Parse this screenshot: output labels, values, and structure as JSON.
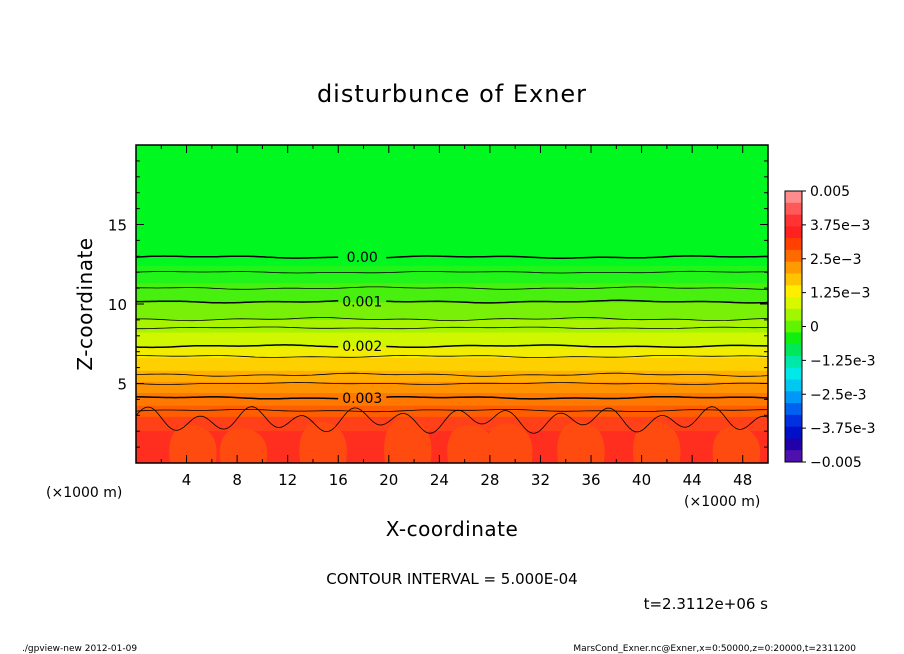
{
  "chart_data": {
    "type": "heatmap",
    "title": "disturbunce of Exner",
    "xlabel": "X-coordinate",
    "ylabel": "Z-coordinate",
    "xunit": "(×1000 m)",
    "zunit": "(×1000 m)",
    "xlim": [
      0,
      50
    ],
    "ylim": [
      0,
      20
    ],
    "xticks": [
      4,
      8,
      12,
      16,
      20,
      24,
      28,
      32,
      36,
      40,
      44,
      48
    ],
    "yticks": [
      5,
      10,
      15
    ],
    "colorbar": {
      "range": [
        -0.005,
        0.005
      ],
      "labels": [
        "0.005",
        "3.75e-3",
        "2.5e-3",
        "1.25e-3",
        "0",
        "-1.25e-3",
        "-2.5e-3",
        "-3.75e-3",
        "-0.005"
      ],
      "colors": [
        "#ff8c8c",
        "#ff5a5a",
        "#ff3333",
        "#ff2020",
        "#ff4000",
        "#ff6a00",
        "#ff9a00",
        "#ffc400",
        "#ffee00",
        "#d8f800",
        "#a0f800",
        "#60f400",
        "#10f010",
        "#00e85a",
        "#00e8a8",
        "#00e8e8",
        "#00c8f0",
        "#0098f8",
        "#0060f0",
        "#0030e0",
        "#0010c8",
        "#2000a8",
        "#5010b0"
      ]
    },
    "contour_lines": [
      {
        "level": "0.00",
        "z": 12.95
      },
      {
        "level": "0.001",
        "z": 10.15
      },
      {
        "level": "0.002",
        "z": 7.35
      },
      {
        "level": "0.003",
        "z": 4.1
      }
    ],
    "minor_contour_z": [
      12.0,
      11.0,
      9.05,
      8.5,
      6.7,
      5.55,
      5.0,
      3.3
    ],
    "field_bands": [
      {
        "z": 20.0,
        "color": "#00f820"
      },
      {
        "z": 13.2,
        "color": "#00f820"
      },
      {
        "z": 12.4,
        "color": "#20f418"
      },
      {
        "z": 11.3,
        "color": "#48f010"
      },
      {
        "z": 10.1,
        "color": "#78f008"
      },
      {
        "z": 9.0,
        "color": "#a8f400"
      },
      {
        "z": 8.2,
        "color": "#d0f600"
      },
      {
        "z": 7.3,
        "color": "#f2ec00"
      },
      {
        "z": 6.6,
        "color": "#ffd000"
      },
      {
        "z": 5.8,
        "color": "#ffb000"
      },
      {
        "z": 5.1,
        "color": "#ff9400"
      },
      {
        "z": 4.4,
        "color": "#ff7800"
      },
      {
        "z": 3.6,
        "color": "#ff5e00"
      },
      {
        "z": 2.9,
        "color": "#ff4018"
      },
      {
        "z": 2.0,
        "color": "#ff2e1e"
      },
      {
        "z": 0.0,
        "color": "#ff2418"
      }
    ],
    "contour_interval_text": "CONTOUR INTERVAL = 5.000E-04",
    "time_text": "t=2.3112e+06 s"
  },
  "footer": {
    "left": "./gpview-new   2012-01-09",
    "right": "MarsCond_Exner.nc@Exner,x=0:50000,z=0:20000,t=2311200"
  }
}
